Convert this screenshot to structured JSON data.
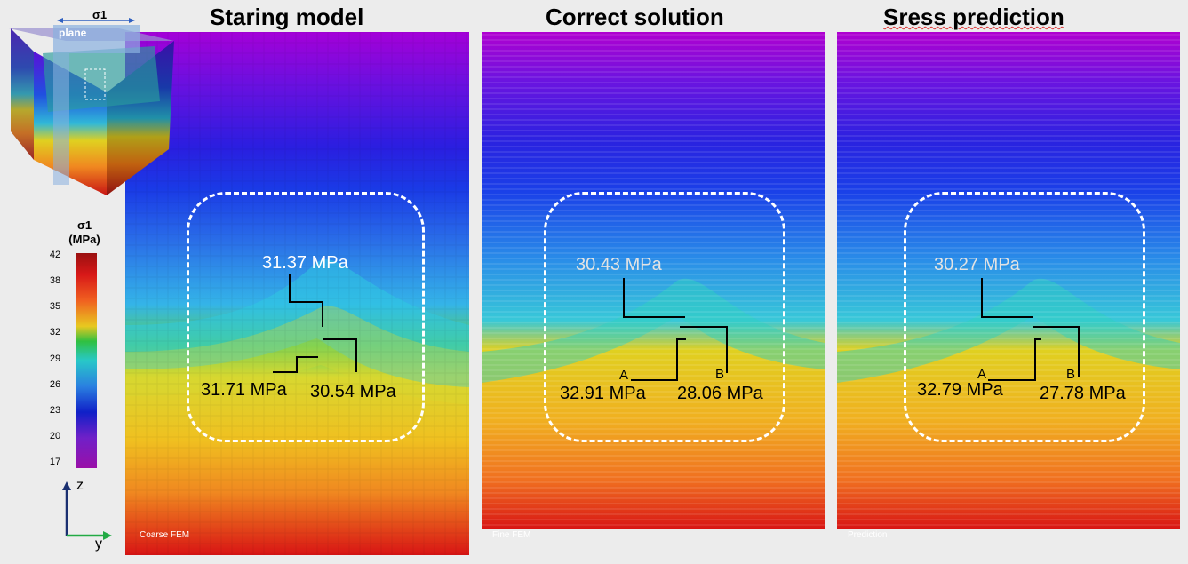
{
  "titles": {
    "left": "Staring model",
    "middle": "Correct solution",
    "right": "Sress prediction"
  },
  "panels": [
    {
      "id": "coarse",
      "tag": "Coarse FEM",
      "top_value": "31.37 MPa",
      "left_value": "31.71 MPa",
      "right_value": "30.54 MPa"
    },
    {
      "id": "fine",
      "tag": "Fine FEM",
      "top_value": "30.43 MPa",
      "left_value": "32.91 MPa",
      "right_value": "28.06 MPa",
      "point_a": "A",
      "point_b": "B"
    },
    {
      "id": "prediction",
      "tag": "Prediction",
      "top_value": "30.27 MPa",
      "left_value": "32.79 MPa",
      "right_value": "27.78 MPa",
      "point_a": "A",
      "point_b": "B"
    }
  ],
  "inset": {
    "sigma_label": "σ1",
    "plane_label": "plane"
  },
  "colorbar": {
    "title_line1": "σ1",
    "title_line2": "(MPa)",
    "ticks": [
      "42",
      "38",
      "35",
      "32",
      "29",
      "26",
      "23",
      "20",
      "17"
    ],
    "min": 17,
    "max": 42
  },
  "axes": {
    "z_label": "z",
    "y_label": "y"
  },
  "colors": {
    "purple": "#8a00c8",
    "blue": "#1020d8",
    "cyan": "#18c8e8",
    "green": "#28c040",
    "yellow": "#e8d820",
    "orange": "#f09020",
    "red": "#d81818",
    "arrow_z": "#1a2f70",
    "arrow_y": "#22aa44"
  }
}
